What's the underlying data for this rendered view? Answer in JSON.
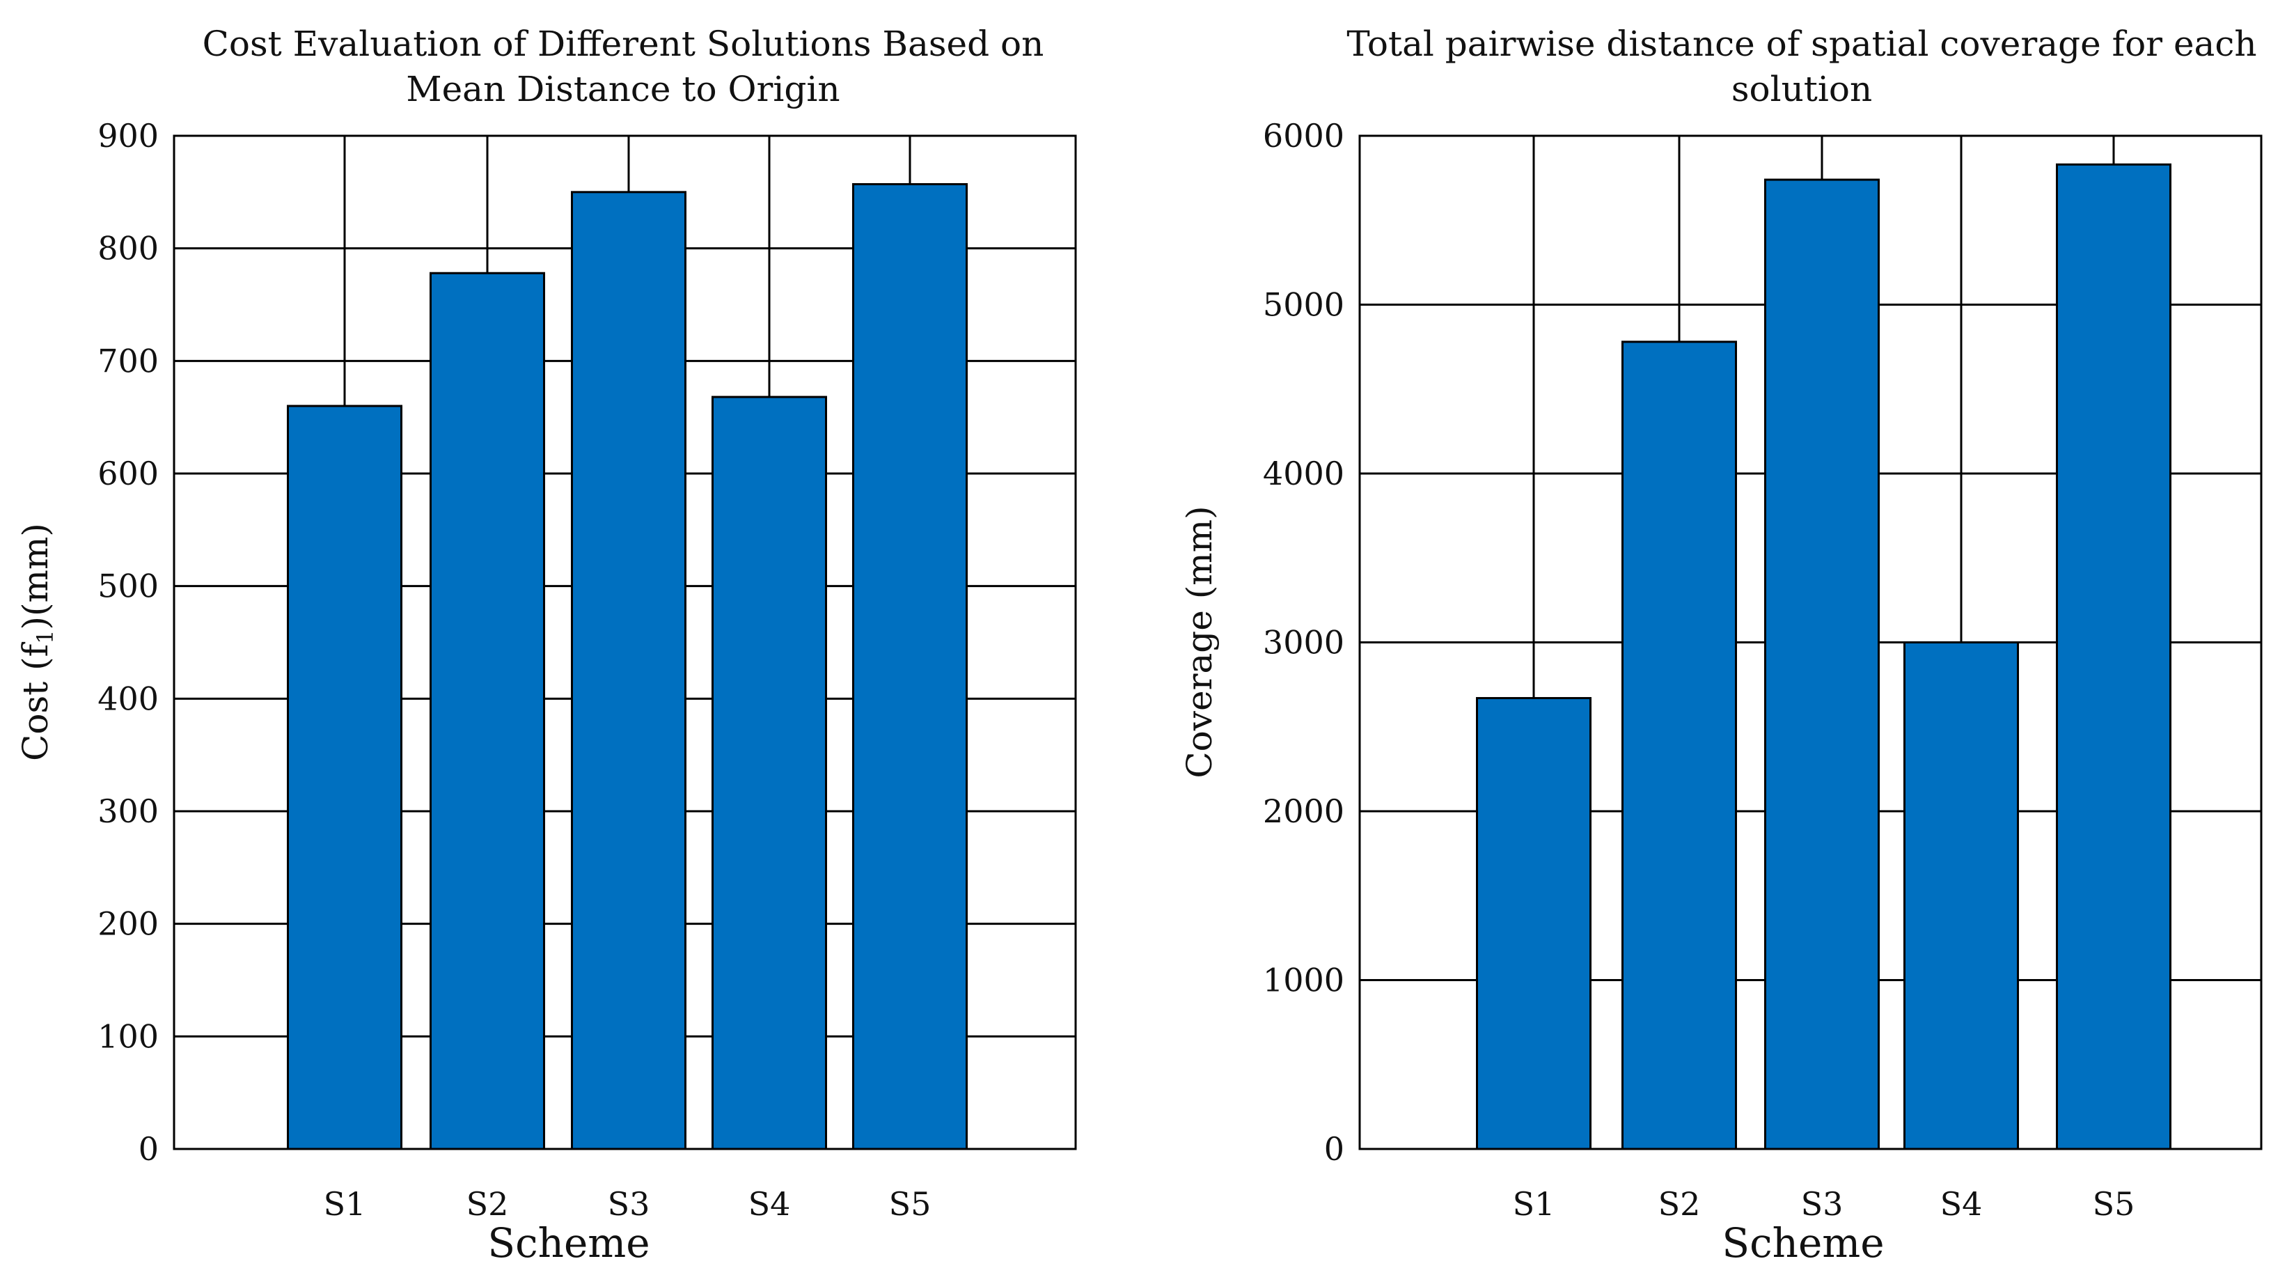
{
  "bar_color": "#0070C0",
  "grid_color": "#000000",
  "chart_data": [
    {
      "type": "bar",
      "title_lines": [
        "Cost Evaluation of Different Solutions Based on",
        "Mean Distance to Origin"
      ],
      "xlabel": "Scheme",
      "ylabel_main": "Cost (f",
      "ylabel_sub": "1",
      "ylabel_tail": ")(mm)",
      "categories": [
        "S1",
        "S2",
        "S3",
        "S4",
        "S5"
      ],
      "values": [
        660,
        778,
        850,
        668,
        857
      ],
      "ylim": [
        0,
        900
      ],
      "yticks": [
        "0",
        "100",
        "200",
        "300",
        "400",
        "500",
        "600",
        "700",
        "800",
        "900"
      ],
      "grid": true
    },
    {
      "type": "bar",
      "title_lines": [
        "Total pairwise distance of spatial coverage for each",
        "solution"
      ],
      "xlabel": "Scheme",
      "ylabel_main": "Coverage (mm)",
      "ylabel_sub": "",
      "ylabel_tail": "",
      "categories": [
        "S1",
        "S2",
        "S3",
        "S4",
        "S5"
      ],
      "values": [
        2670,
        4780,
        5740,
        3000,
        5830
      ],
      "ylim": [
        0,
        6000
      ],
      "yticks": [
        "0",
        "1000",
        "2000",
        "3000",
        "4000",
        "5000",
        "6000"
      ],
      "grid": true
    }
  ]
}
